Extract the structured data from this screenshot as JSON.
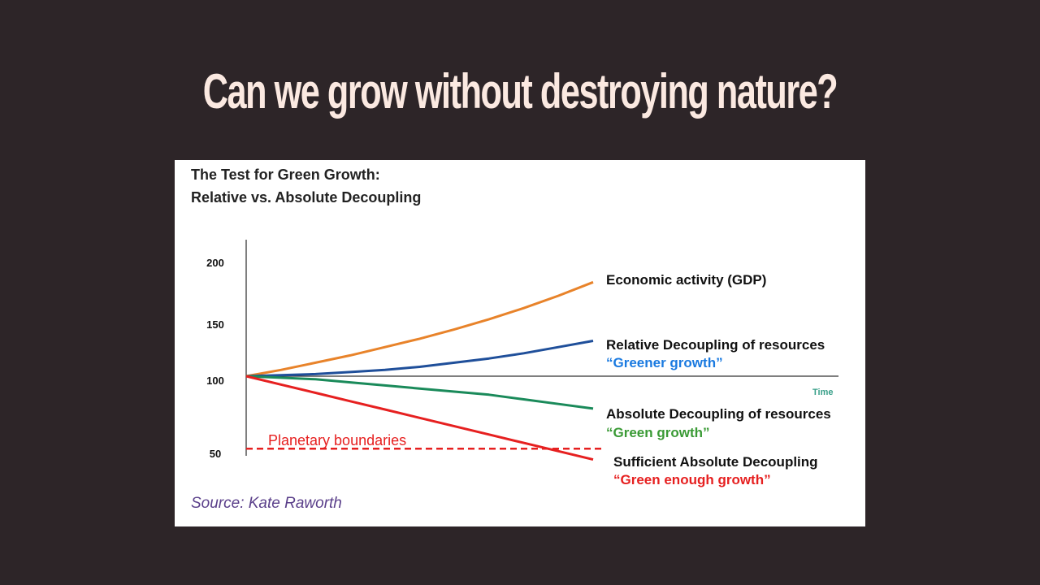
{
  "slide": {
    "title": "Can we grow without destroying nature?"
  },
  "chart_data": {
    "type": "line",
    "title": "The Test for Green Growth:",
    "subtitle": "Relative vs. Absolute Decoupling",
    "xlabel": "Time",
    "ylabel": "",
    "yticks": [
      200,
      150,
      100,
      50
    ],
    "x": [
      0,
      1,
      2,
      3,
      4,
      5,
      6,
      7,
      8,
      9,
      10
    ],
    "series": [
      {
        "name": "Economic activity (GDP)",
        "tagline": "",
        "color": "#e8832a",
        "values": [
          100,
          106,
          113,
          120,
          128,
          136,
          145,
          154,
          163,
          173,
          184
        ]
      },
      {
        "name": "Relative Decoupling of resources",
        "tagline": "“Greener growth”",
        "tagline_color": "#1a7ae0",
        "color": "#1f4f9a",
        "values": [
          100,
          101,
          102,
          104,
          106,
          109,
          113,
          117,
          122,
          128,
          134
        ]
      },
      {
        "name": "Absolute Decoupling of resources",
        "tagline": "“Green growth”",
        "tagline_color": "#3a9a35",
        "color": "#1a8a5a",
        "values": [
          100,
          99,
          98,
          96,
          94,
          92,
          90,
          88,
          85,
          82,
          79
        ]
      },
      {
        "name": "Sufficient Absolute Decoupling",
        "tagline": "“Green enough growth”",
        "tagline_color": "#e62020",
        "color": "#e62020",
        "values": [
          100,
          94.6,
          89.2,
          83.8,
          78.4,
          73,
          67.6,
          62.2,
          56.8,
          51.4,
          46
        ]
      }
    ],
    "reference_line": {
      "label": "Planetary boundaries",
      "value": 53,
      "color": "#e62020",
      "style": "dashed"
    },
    "source": "Source: Kate Raworth",
    "grid": false
  }
}
